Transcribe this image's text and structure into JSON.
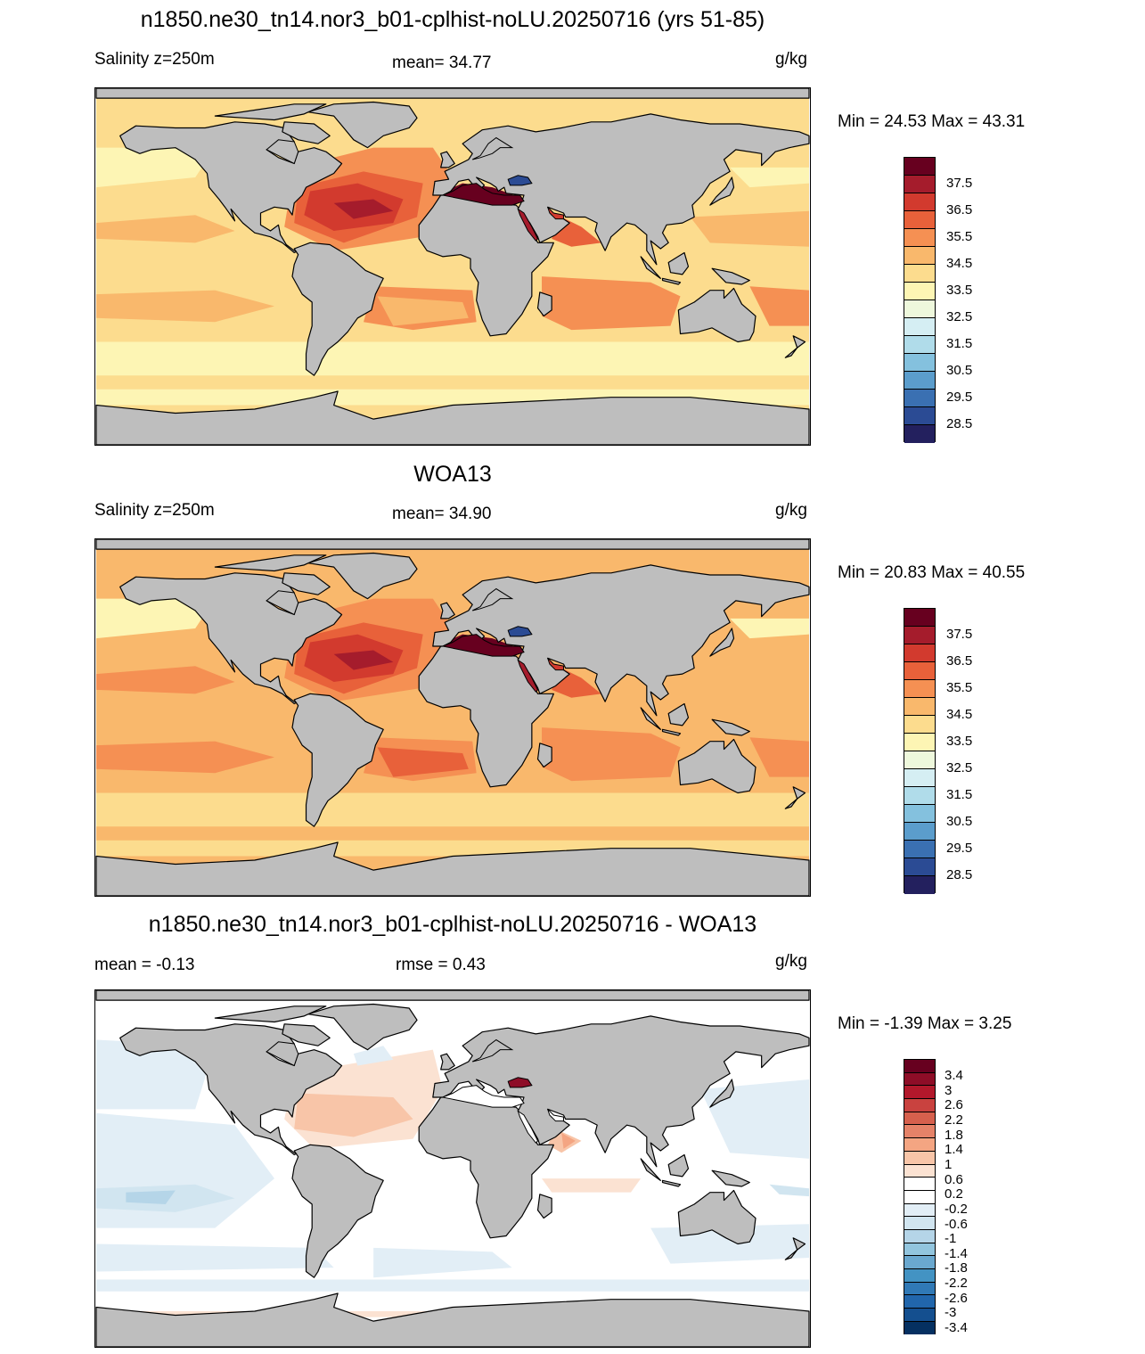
{
  "panels": [
    {
      "title": "n1850.ne30_tn14.nor3_b01-cplhist-noLU.20250716 (yrs 51-85)",
      "left_label": "Salinity z=250m",
      "center_label": "mean=  34.77",
      "units": "g/kg",
      "minmax": "Min =  24.53 Max =  43.31",
      "colorbar": {
        "colors": [
          "#67001f",
          "#a51c2c",
          "#d23a2e",
          "#e8613a",
          "#f59053",
          "#f9b86c",
          "#fcdc8e",
          "#fdf5b4",
          "#eef8dc",
          "#d5eef3",
          "#b0dcea",
          "#84c1de",
          "#5b9dcc",
          "#3a70b2",
          "#2b4b94",
          "#23205e"
        ],
        "labels": [
          "37.5",
          "36.5",
          "35.5",
          "34.5",
          "33.5",
          "32.5",
          "31.5",
          "30.5",
          "29.5",
          "28.5"
        ]
      }
    },
    {
      "title": "WOA13",
      "left_label": "Salinity z=250m",
      "center_label": "mean=  34.90",
      "units": "g/kg",
      "minmax": "Min =  20.83 Max =  40.55",
      "colorbar": {
        "colors": [
          "#67001f",
          "#a51c2c",
          "#d23a2e",
          "#e8613a",
          "#f59053",
          "#f9b86c",
          "#fcdc8e",
          "#fdf5b4",
          "#eef8dc",
          "#d5eef3",
          "#b0dcea",
          "#84c1de",
          "#5b9dcc",
          "#3a70b2",
          "#2b4b94",
          "#23205e"
        ],
        "labels": [
          "37.5",
          "36.5",
          "35.5",
          "34.5",
          "33.5",
          "32.5",
          "31.5",
          "30.5",
          "29.5",
          "28.5"
        ]
      }
    },
    {
      "title": "n1850.ne30_tn14.nor3_b01-cplhist-noLU.20250716 - WOA13",
      "left_label": "mean =  -0.13",
      "center_label": "rmse =   0.43",
      "units": "g/kg",
      "minmax": "Min =  -1.39 Max =   3.25",
      "colorbar": {
        "colors": [
          "#67001f",
          "#8e0d27",
          "#b2182b",
          "#c9423f",
          "#d6604d",
          "#e58268",
          "#f4a582",
          "#f8c5a8",
          "#fbe2d2",
          "#ffffff",
          "#ffffff",
          "#e2eef6",
          "#d1e5f0",
          "#b5d5e8",
          "#92c5de",
          "#6aa8cf",
          "#4393c3",
          "#3079b6",
          "#2166ac",
          "#144f8f",
          "#053061"
        ],
        "labels": [
          "3.4",
          "3",
          "2.6",
          "2.2",
          "1.8",
          "1.4",
          "1",
          "0.6",
          "0.2",
          "-0.2",
          "-0.6",
          "-1",
          "-1.4",
          "-1.8",
          "-2.2",
          "-2.6",
          "-3",
          "-3.4"
        ]
      }
    }
  ],
  "map": {
    "land_color": "#bebebe",
    "coast_color": "#000000"
  }
}
